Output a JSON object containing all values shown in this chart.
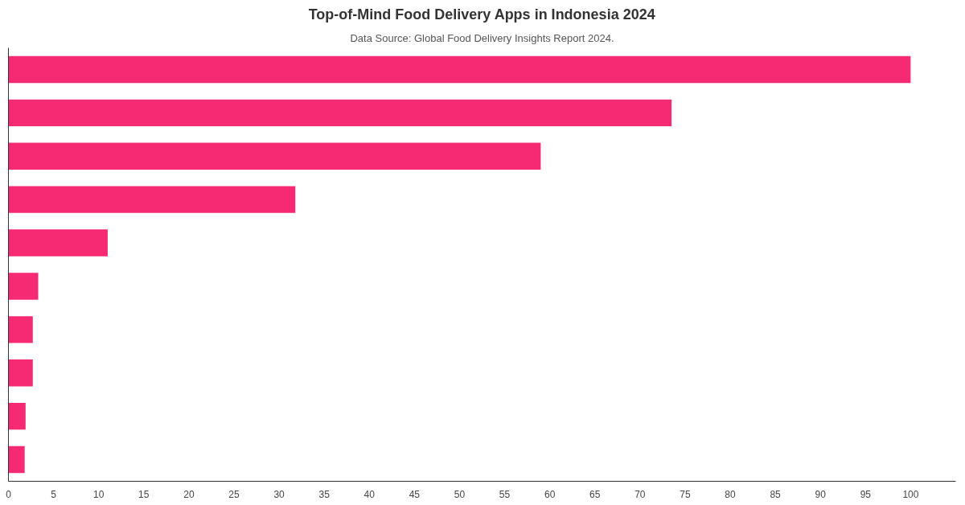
{
  "chart_data": {
    "type": "bar",
    "orientation": "horizontal",
    "title": "Top-of-Mind Food Delivery Apps in Indonesia 2024",
    "subtitle": "Data Source: Global Food Delivery Insights Report 2024.",
    "categories": [
      null,
      null,
      null,
      null,
      null,
      null,
      null,
      null,
      null,
      null
    ],
    "values": [
      100,
      73.5,
      59.0,
      31.8,
      11.0,
      3.3,
      2.7,
      2.7,
      1.9,
      1.8
    ],
    "color": "#f52a72",
    "xlim": [
      0,
      105
    ],
    "xticks": [
      0,
      5,
      10,
      15,
      20,
      25,
      30,
      35,
      40,
      45,
      50,
      55,
      60,
      65,
      70,
      75,
      80,
      85,
      90,
      95,
      100
    ],
    "grid": false
  }
}
